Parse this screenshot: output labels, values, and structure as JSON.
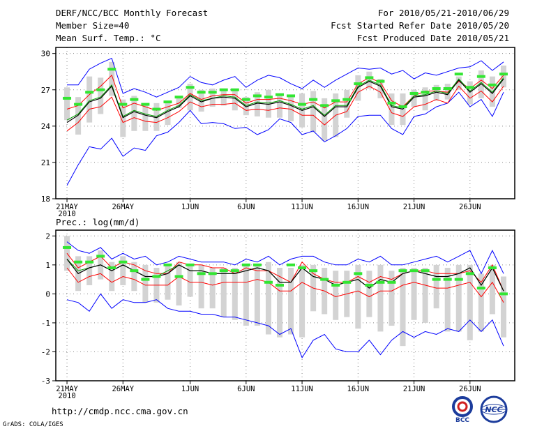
{
  "header": {
    "title": "DERF/NCC/BCC Monthly Forecast",
    "member_size": "Member Size=40",
    "variable": "Mean Surf. Temp.: °C",
    "period": "For 2010/05/21-2010/06/29",
    "start_date": "Fcst Started Refer Date 2010/05/20",
    "produced_date": "Fcst Produced Date 2010/05/21"
  },
  "footer": {
    "url": "http://cmdp.ncc.cma.gov.cn",
    "grads": "GrADS: COLA/IGES",
    "logo_bcc": "BCC",
    "logo_ncc": "NCC"
  },
  "colors": {
    "ensemble_max_min": "#0000ff",
    "ensemble_mean": "#000000",
    "spread_lines": "#ff0000",
    "median_line": "#00a000",
    "box": "#d3d3d3",
    "marker": "#32e632"
  },
  "chart_data": [
    {
      "id": "temperature",
      "type": "box-line",
      "title": "",
      "ylabel": "Mean Surf. Temp.: °C",
      "ylim": [
        18,
        30.5
      ],
      "yticks": [
        18,
        21,
        24,
        27,
        30
      ],
      "xticks": [
        {
          "day": 0,
          "label": "21MAY",
          "sublabel": "2010"
        },
        {
          "day": 5,
          "label": "26MAY"
        },
        {
          "day": 11,
          "label": "1JUN"
        },
        {
          "day": 16,
          "label": "6JUN"
        },
        {
          "day": 21,
          "label": "11JUN"
        },
        {
          "day": 26,
          "label": "16JUN"
        },
        {
          "day": 31,
          "label": "21JUN"
        },
        {
          "day": 36,
          "label": "26JUN"
        }
      ],
      "days": 40,
      "max": [
        27.4,
        27.4,
        28.7,
        29.2,
        29.6,
        26.7,
        27.1,
        26.8,
        26.4,
        26.8,
        27.2,
        28.1,
        27.6,
        27.4,
        27.8,
        28.1,
        27.2,
        27.8,
        28.2,
        28.0,
        27.5,
        27.1,
        27.8,
        27.2,
        27.8,
        28.3,
        28.8,
        28.7,
        28.8,
        28.3,
        28.6,
        27.9,
        28.4,
        28.2,
        28.5,
        28.8,
        28.9,
        29.4,
        28.6,
        29.3
      ],
      "upper": [
        25.4,
        25.7,
        26.6,
        27.3,
        28.2,
        25.5,
        25.9,
        25.6,
        25.3,
        25.6,
        25.9,
        26.7,
        26.2,
        26.5,
        26.6,
        26.6,
        25.9,
        26.2,
        26.2,
        26.3,
        26.1,
        25.8,
        26.0,
        25.5,
        26.0,
        26.0,
        27.5,
        28.0,
        27.6,
        26.1,
        25.6,
        26.5,
        26.9,
        26.9,
        26.8,
        27.7,
        27.1,
        27.8,
        27.1,
        28.2
      ],
      "mean": [
        24.3,
        24.9,
        26.0,
        26.3,
        27.3,
        24.7,
        25.2,
        24.9,
        24.7,
        25.2,
        25.6,
        26.5,
        26.0,
        26.3,
        26.4,
        26.3,
        25.6,
        25.9,
        25.8,
        26.0,
        25.7,
        25.3,
        25.6,
        24.8,
        25.6,
        25.6,
        27.2,
        27.7,
        27.3,
        25.6,
        25.4,
        26.4,
        26.5,
        26.8,
        26.6,
        27.8,
        26.8,
        27.5,
        26.7,
        27.9
      ],
      "median": [
        24.5,
        25.0,
        26.1,
        26.4,
        27.4,
        24.8,
        25.3,
        25.0,
        24.8,
        25.3,
        25.7,
        26.6,
        26.1,
        26.3,
        26.5,
        26.4,
        25.7,
        26.0,
        25.9,
        26.1,
        25.8,
        25.4,
        25.7,
        24.9,
        25.7,
        25.7,
        27.3,
        27.8,
        27.4,
        25.7,
        25.5,
        26.5,
        26.6,
        26.9,
        26.7,
        27.9,
        26.9,
        27.6,
        26.8,
        28.0
      ],
      "lower": [
        23.6,
        24.3,
        25.4,
        25.6,
        26.4,
        24.3,
        24.7,
        24.4,
        24.3,
        24.7,
        25.2,
        26.0,
        25.6,
        25.8,
        25.8,
        25.9,
        25.3,
        25.4,
        25.3,
        25.5,
        25.4,
        24.9,
        24.9,
        24.1,
        24.9,
        25.2,
        26.8,
        27.3,
        26.8,
        25.1,
        24.8,
        25.6,
        25.8,
        26.2,
        25.9,
        27.3,
        26.3,
        26.9,
        26.0,
        27.3
      ],
      "min": [
        19.1,
        20.8,
        22.3,
        22.1,
        23.0,
        21.5,
        22.2,
        22.0,
        23.2,
        23.5,
        24.3,
        25.3,
        24.2,
        24.3,
        24.2,
        23.8,
        23.9,
        23.3,
        23.7,
        24.6,
        24.3,
        23.3,
        23.6,
        22.7,
        23.2,
        23.8,
        24.8,
        24.9,
        24.9,
        23.8,
        23.3,
        24.8,
        25.0,
        25.6,
        25.9,
        26.8,
        25.6,
        26.2,
        24.8,
        26.8
      ],
      "box_high": [
        27.2,
        26.4,
        28.1,
        28.0,
        29.3,
        26.2,
        26.5,
        25.9,
        25.9,
        26.0,
        26.3,
        27.5,
        27.0,
        27.1,
        27.0,
        26.9,
        26.4,
        26.8,
        27.0,
        26.7,
        26.4,
        26.7,
        26.9,
        26.3,
        26.7,
        27.0,
        28.2,
        28.5,
        27.9,
        26.7,
        26.7,
        27.0,
        27.2,
        27.4,
        27.5,
        28.1,
        27.7,
        28.6,
        28.1,
        29.0
      ],
      "box_low": [
        24.5,
        23.3,
        24.3,
        25.0,
        26.5,
        23.1,
        23.6,
        23.6,
        23.6,
        24.1,
        25.5,
        25.3,
        25.2,
        25.6,
        25.7,
        25.3,
        24.9,
        24.8,
        24.7,
        24.7,
        24.4,
        23.9,
        23.5,
        22.8,
        23.1,
        24.7,
        26.1,
        27.1,
        26.3,
        24.1,
        24.1,
        25.6,
        25.3,
        26.1,
        26.2,
        27.0,
        25.8,
        26.3,
        25.6,
        27.2
      ],
      "markers": [
        26.3,
        25.8,
        26.8,
        27.0,
        28.7,
        25.8,
        26.2,
        25.8,
        25.4,
        26.0,
        26.4,
        27.2,
        26.8,
        26.8,
        27.0,
        27.0,
        26.2,
        26.5,
        26.4,
        26.6,
        26.5,
        25.8,
        26.2,
        25.7,
        26.1,
        26.2,
        27.5,
        28.0,
        27.7,
        25.9,
        25.6,
        26.7,
        26.8,
        27.1,
        27.1,
        28.3,
        27.2,
        28.1,
        27.4,
        28.3
      ]
    },
    {
      "id": "precipitation",
      "type": "box-line",
      "title": "",
      "ylabel": "Prec.: log(mm/d)",
      "ylim": [
        -3,
        2.2
      ],
      "yticks": [
        -3,
        -2,
        -1,
        0,
        1,
        2
      ],
      "xticks": [
        {
          "day": 0,
          "label": "21MAY",
          "sublabel": "2010"
        },
        {
          "day": 5,
          "label": "26MAY"
        },
        {
          "day": 11,
          "label": "1JUN"
        },
        {
          "day": 16,
          "label": "6JUN"
        },
        {
          "day": 21,
          "label": "11JUN"
        },
        {
          "day": 26,
          "label": "16JUN"
        },
        {
          "day": 31,
          "label": "21JUN"
        },
        {
          "day": 36,
          "label": "26JUN"
        }
      ],
      "days": 40,
      "max": [
        1.8,
        1.5,
        1.4,
        1.6,
        1.2,
        1.4,
        1.2,
        1.3,
        1.0,
        1.1,
        1.3,
        1.2,
        1.1,
        1.1,
        1.1,
        1.0,
        1.2,
        1.1,
        1.3,
        1.0,
        1.2,
        1.3,
        1.3,
        1.1,
        1.0,
        1.0,
        1.2,
        1.1,
        1.3,
        1.0,
        1.0,
        1.1,
        1.2,
        1.3,
        1.1,
        1.3,
        1.5,
        0.7,
        1.5,
        0.7
      ],
      "upper": [
        1.4,
        0.9,
        1.1,
        1.3,
        0.9,
        1.1,
        1.0,
        0.8,
        0.7,
        0.7,
        1.1,
        1.0,
        1.0,
        0.9,
        0.9,
        0.7,
        0.9,
        0.8,
        0.8,
        0.6,
        0.4,
        1.1,
        0.7,
        0.5,
        0.4,
        0.4,
        0.6,
        0.4,
        0.6,
        0.5,
        0.7,
        0.8,
        0.8,
        0.7,
        0.7,
        0.7,
        0.8,
        0.4,
        1.0,
        0.1
      ],
      "mean": [
        1.2,
        0.7,
        0.9,
        1.0,
        0.8,
        1.0,
        0.8,
        0.6,
        0.6,
        0.7,
        1.0,
        0.8,
        0.8,
        0.7,
        0.7,
        0.7,
        0.8,
        0.9,
        0.8,
        0.4,
        0.4,
        0.9,
        0.6,
        0.5,
        0.3,
        0.4,
        0.5,
        0.2,
        0.5,
        0.4,
        0.7,
        0.8,
        0.7,
        0.6,
        0.6,
        0.7,
        0.9,
        0.3,
        0.9,
        0.1
      ],
      "median": [
        1.2,
        0.8,
        0.9,
        1.0,
        0.8,
        1.0,
        0.8,
        0.6,
        0.6,
        0.8,
        1.0,
        0.8,
        0.8,
        0.7,
        0.7,
        0.7,
        0.8,
        0.9,
        0.8,
        0.4,
        0.4,
        0.9,
        0.6,
        0.5,
        0.3,
        0.4,
        0.5,
        0.2,
        0.5,
        0.4,
        0.7,
        0.8,
        0.7,
        0.6,
        0.6,
        0.7,
        0.9,
        0.3,
        0.9,
        0.1
      ],
      "lower": [
        0.9,
        0.4,
        0.6,
        0.7,
        0.4,
        0.6,
        0.5,
        0.3,
        0.3,
        0.3,
        0.6,
        0.4,
        0.4,
        0.3,
        0.4,
        0.4,
        0.4,
        0.5,
        0.4,
        0.1,
        0.1,
        0.4,
        0.2,
        0.1,
        -0.1,
        0.0,
        0.1,
        -0.1,
        0.1,
        0.1,
        0.3,
        0.4,
        0.3,
        0.2,
        0.2,
        0.3,
        0.4,
        -0.1,
        0.4,
        -0.3
      ],
      "min": [
        -0.2,
        -0.3,
        -0.6,
        0.0,
        -0.5,
        -0.2,
        -0.3,
        -0.3,
        -0.2,
        -0.5,
        -0.6,
        -0.6,
        -0.7,
        -0.7,
        -0.8,
        -0.8,
        -0.9,
        -1.0,
        -1.1,
        -1.4,
        -1.2,
        -2.2,
        -1.6,
        -1.4,
        -1.9,
        -2.0,
        -2.0,
        -1.6,
        -2.1,
        -1.6,
        -1.3,
        -1.5,
        -1.3,
        -1.4,
        -1.2,
        -1.3,
        -0.9,
        -1.3,
        -0.9,
        -1.8
      ],
      "box_high": [
        2.0,
        1.3,
        1.3,
        1.5,
        1.1,
        1.3,
        1.1,
        1.0,
        0.9,
        1.0,
        1.1,
        1.0,
        1.0,
        0.9,
        0.9,
        0.9,
        1.0,
        1.0,
        1.1,
        0.9,
        0.9,
        1.0,
        1.0,
        0.9,
        0.8,
        0.8,
        1.0,
        0.8,
        1.0,
        0.8,
        0.9,
        0.9,
        0.9,
        1.0,
        0.9,
        1.0,
        1.0,
        0.7,
        1.0,
        0.6
      ],
      "box_low": [
        0.8,
        0.1,
        0.3,
        0.5,
        0.1,
        0.3,
        0.1,
        -0.3,
        -0.3,
        -0.2,
        -0.4,
        -0.1,
        -0.5,
        -0.5,
        -0.8,
        -0.9,
        -1.1,
        -1.1,
        -1.4,
        -1.5,
        -1.4,
        -1.5,
        -0.6,
        -0.7,
        -0.9,
        -0.8,
        -1.2,
        -0.8,
        -1.3,
        -1.1,
        -1.8,
        -0.9,
        -1.0,
        -0.5,
        -1.3,
        -1.3,
        -1.6,
        -1.3,
        -0.7,
        -1.5
      ],
      "markers": [
        1.6,
        1.1,
        1.1,
        1.3,
        0.9,
        1.1,
        0.8,
        0.5,
        0.6,
        1.0,
        0.6,
        1.0,
        0.7,
        0.7,
        0.8,
        0.8,
        1.0,
        1.0,
        0.4,
        0.3,
        1.0,
        0.9,
        0.8,
        0.5,
        0.3,
        0.4,
        0.7,
        0.3,
        0.4,
        0.4,
        0.8,
        0.8,
        0.8,
        0.5,
        0.5,
        0.5,
        0.7,
        0.2,
        0.9,
        0.0
      ]
    }
  ]
}
